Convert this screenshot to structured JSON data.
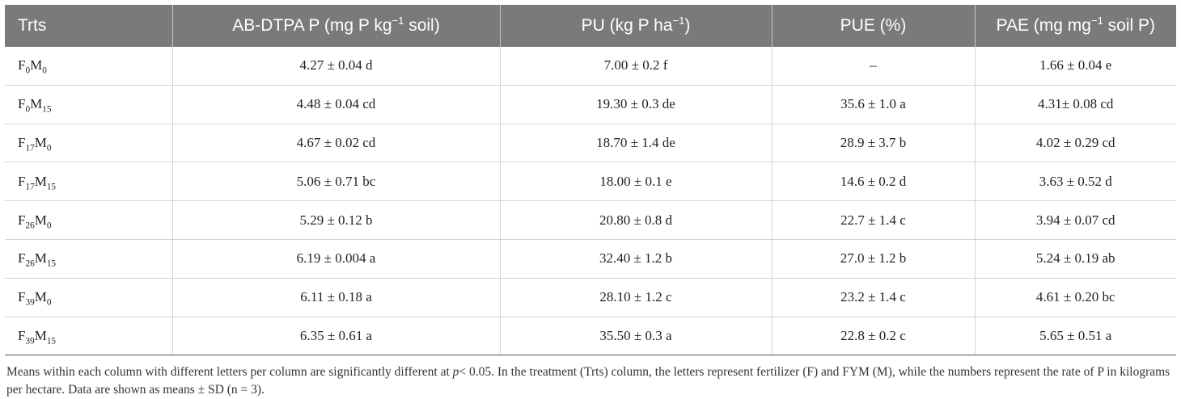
{
  "table": {
    "headers": [
      {
        "pre": "Trts",
        "sup": "",
        "post": ""
      },
      {
        "pre": "AB-DTPA P (mg P kg",
        "sup": "−1",
        "post": " soil)"
      },
      {
        "pre": "PU (kg P ha",
        "sup": "−1",
        "post": ")"
      },
      {
        "pre": "PUE (%)",
        "sup": "",
        "post": ""
      },
      {
        "pre": "PAE (mg mg",
        "sup": "−1",
        "post": " soil P)"
      }
    ],
    "rows": [
      {
        "f": "F",
        "f_sub": "0",
        "m": "M",
        "m_sub": "0",
        "ab": "4.27 ± 0.04 d",
        "pu": "7.00 ± 0.2 f",
        "pue": "–",
        "pae": "1.66 ± 0.04 e"
      },
      {
        "f": "F",
        "f_sub": "0",
        "m": "M",
        "m_sub": "15",
        "ab": "4.48 ± 0.04 cd",
        "pu": "19.30 ± 0.3 de",
        "pue": "35.6 ± 1.0 a",
        "pae": "4.31± 0.08 cd"
      },
      {
        "f": "F",
        "f_sub": "17",
        "m": "M",
        "m_sub": "0",
        "ab": "4.67 ± 0.02 cd",
        "pu": "18.70 ± 1.4 de",
        "pue": "28.9 ± 3.7 b",
        "pae": "4.02 ± 0.29 cd"
      },
      {
        "f": "F",
        "f_sub": "17",
        "m": "M",
        "m_sub": "15",
        "ab": "5.06 ± 0.71 bc",
        "pu": "18.00 ± 0.1 e",
        "pue": "14.6 ± 0.2 d",
        "pae": "3.63 ± 0.52 d"
      },
      {
        "f": "F",
        "f_sub": "26",
        "m": "M",
        "m_sub": "0",
        "ab": "5.29 ± 0.12 b",
        "pu": "20.80 ± 0.8 d",
        "pue": "22.7 ± 1.4 c",
        "pae": "3.94 ± 0.07 cd"
      },
      {
        "f": "F",
        "f_sub": "26",
        "m": "M",
        "m_sub": "15",
        "ab": "6.19 ± 0.004 a",
        "pu": "32.40 ± 1.2 b",
        "pue": "27.0 ± 1.2 b",
        "pae": "5.24 ± 0.19 ab"
      },
      {
        "f": "F",
        "f_sub": "39",
        "m": "M",
        "m_sub": "0",
        "ab": "6.11 ± 0.18 a",
        "pu": "28.10 ± 1.2 c",
        "pue": "23.2 ± 1.4 c",
        "pae": "4.61 ± 0.20 bc"
      },
      {
        "f": "F",
        "f_sub": "39",
        "m": "M",
        "m_sub": "15",
        "ab": "6.35 ± 0.61 a",
        "pu": "35.50 ± 0.3 a",
        "pue": "22.8 ± 0.2 c",
        "pae": "5.65 ± 0.51 a"
      }
    ]
  },
  "footnote": {
    "before_p": "Means within each column with different letters per column are significantly different at ",
    "p": "p",
    "after_p": "< 0.05. In the treatment (Trts) column, the letters represent fertilizer (F) and FYM (M), while the numbers represent the rate of P in kilograms per hectare. Data are shown as means ± SD (n = 3)."
  },
  "colors": {
    "header_bg": "#7a7a7a",
    "header_text": "#ffffff",
    "grid": "#d4d4d4"
  }
}
